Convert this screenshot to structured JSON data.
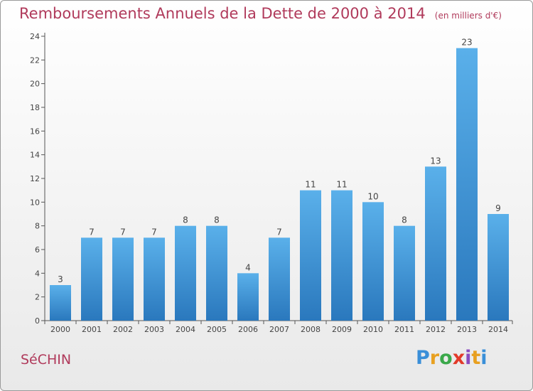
{
  "chart_data": {
    "type": "bar",
    "title": "Remboursements Annuels de la Dette de 2000 à 2014",
    "unit": "(en milliers d'€)",
    "categories": [
      "2000",
      "2001",
      "2002",
      "2003",
      "2004",
      "2005",
      "2006",
      "2007",
      "2008",
      "2009",
      "2010",
      "2011",
      "2012",
      "2013",
      "2014"
    ],
    "values": [
      3,
      7,
      7,
      7,
      8,
      8,
      4,
      7,
      11,
      11,
      10,
      8,
      13,
      23,
      9
    ],
    "ylim": [
      0,
      24
    ],
    "yticks": [
      0,
      2,
      4,
      6,
      8,
      10,
      12,
      14,
      16,
      18,
      20,
      22,
      24
    ],
    "xlabel": "",
    "ylabel": "",
    "bar_color_top": "#5ab0ea",
    "bar_color_bottom": "#2a78bd"
  },
  "commune": "SéCHIN",
  "logo": {
    "text": "Proxiti",
    "letters": [
      "P",
      "r",
      "o",
      "x",
      "i",
      "t",
      "i"
    ],
    "colors": [
      "#3a8fd8",
      "#e8a020",
      "#3aa84a",
      "#e23a2a",
      "#8a4cc0",
      "#e8a020",
      "#3a8fd8"
    ]
  },
  "colors": {
    "title": "#b03a5b",
    "axis": "#555555"
  }
}
